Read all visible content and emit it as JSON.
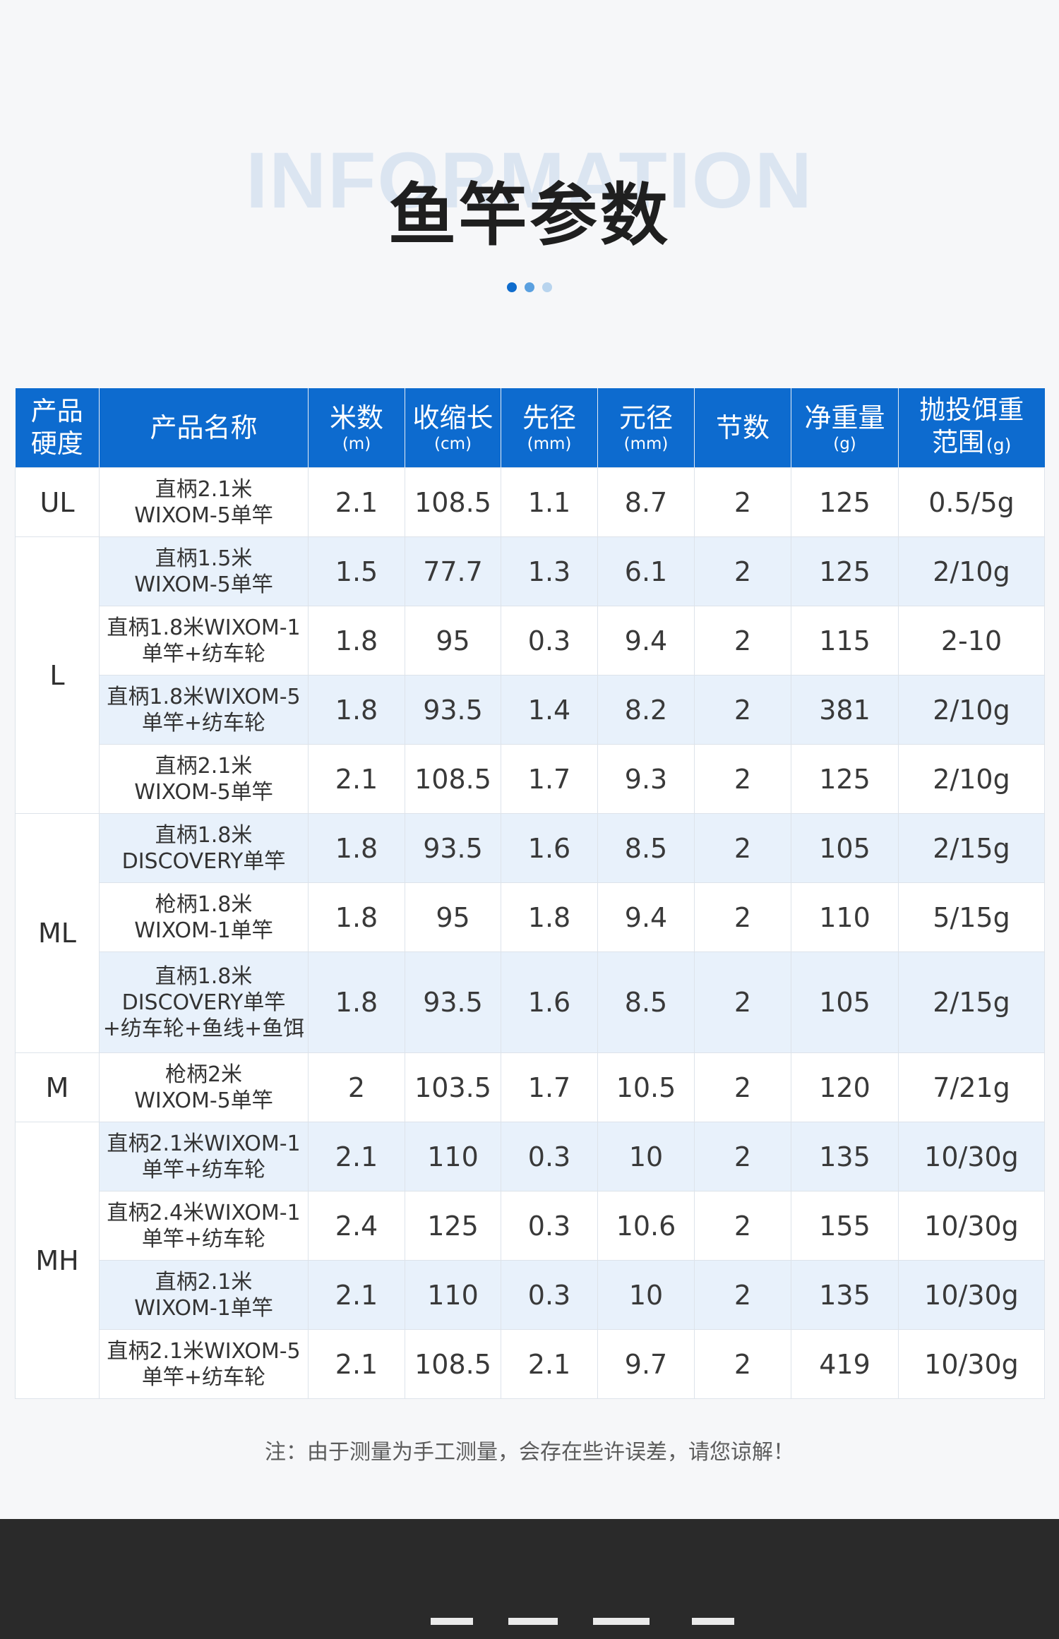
{
  "header": {
    "watermark": "INFORMATION",
    "title": "鱼竿参数"
  },
  "table": {
    "columns": [
      {
        "label": "产品硬度"
      },
      {
        "label": "产品名称"
      },
      {
        "label": "米数",
        "unit": "(m)"
      },
      {
        "label": "收缩长",
        "unit": "(cm)"
      },
      {
        "label": "先径",
        "unit": "(mm)"
      },
      {
        "label": "元径",
        "unit": "(mm)"
      },
      {
        "label": "节数"
      },
      {
        "label": "净重量",
        "unit": "(g)"
      },
      {
        "label_line1": "抛投饵重",
        "label_line2": "范围",
        "unit": "(g)"
      }
    ],
    "groups": [
      {
        "hardness": "UL",
        "rows": [
          {
            "name": "直柄2.1米\nWIXOM-5单竿",
            "length": "2.1",
            "retracted": "108.5",
            "tip": "1.1",
            "butt": "8.7",
            "sections": "2",
            "weight": "125",
            "lure": "0.5/5g"
          }
        ]
      },
      {
        "hardness": "L",
        "rows": [
          {
            "name": "直柄1.5米\nWIXOM-5单竿",
            "length": "1.5",
            "retracted": "77.7",
            "tip": "1.3",
            "butt": "6.1",
            "sections": "2",
            "weight": "125",
            "lure": "2/10g"
          },
          {
            "name": "直柄1.8米WIXOM-1\n单竿+纺车轮",
            "length": "1.8",
            "retracted": "95",
            "tip": "0.3",
            "butt": "9.4",
            "sections": "2",
            "weight": "115",
            "lure": "2-10"
          },
          {
            "name": "直柄1.8米WIXOM-5\n单竿+纺车轮",
            "length": "1.8",
            "retracted": "93.5",
            "tip": "1.4",
            "butt": "8.2",
            "sections": "2",
            "weight": "381",
            "lure": "2/10g"
          },
          {
            "name": "直柄2.1米\nWIXOM-5单竿",
            "length": "2.1",
            "retracted": "108.5",
            "tip": "1.7",
            "butt": "9.3",
            "sections": "2",
            "weight": "125",
            "lure": "2/10g"
          }
        ]
      },
      {
        "hardness": "ML",
        "rows": [
          {
            "name": "直柄1.8米\nDISCOVERY单竿",
            "length": "1.8",
            "retracted": "93.5",
            "tip": "1.6",
            "butt": "8.5",
            "sections": "2",
            "weight": "105",
            "lure": "2/15g"
          },
          {
            "name": "枪柄1.8米\nWIXOM-1单竿",
            "length": "1.8",
            "retracted": "95",
            "tip": "1.8",
            "butt": "9.4",
            "sections": "2",
            "weight": "110",
            "lure": "5/15g"
          },
          {
            "name": "直柄1.8米\nDISCOVERY单竿\n+纺车轮+鱼线+鱼饵",
            "length": "1.8",
            "retracted": "93.5",
            "tip": "1.6",
            "butt": "8.5",
            "sections": "2",
            "weight": "105",
            "lure": "2/15g",
            "tall": true
          }
        ]
      },
      {
        "hardness": "M",
        "rows": [
          {
            "name": "枪柄2米\nWIXOM-5单竿",
            "length": "2",
            "retracted": "103.5",
            "tip": "1.7",
            "butt": "10.5",
            "sections": "2",
            "weight": "120",
            "lure": "7/21g"
          }
        ]
      },
      {
        "hardness": "MH",
        "rows": [
          {
            "name": "直柄2.1米WIXOM-1\n单竿+纺车轮",
            "length": "2.1",
            "retracted": "110",
            "tip": "0.3",
            "butt": "10",
            "sections": "2",
            "weight": "135",
            "lure": "10/30g"
          },
          {
            "name": "直柄2.4米WIXOM-1\n单竿+纺车轮",
            "length": "2.4",
            "retracted": "125",
            "tip": "0.3",
            "butt": "10.6",
            "sections": "2",
            "weight": "155",
            "lure": "10/30g"
          },
          {
            "name": "直柄2.1米\nWIXOM-1单竿",
            "length": "2.1",
            "retracted": "110",
            "tip": "0.3",
            "butt": "10",
            "sections": "2",
            "weight": "135",
            "lure": "10/30g"
          },
          {
            "name": "直柄2.1米WIXOM-5\n单竿+纺车轮",
            "length": "2.1",
            "retracted": "108.5",
            "tip": "2.1",
            "butt": "9.7",
            "sections": "2",
            "weight": "419",
            "lure": "10/30g"
          }
        ]
      }
    ]
  },
  "note": "注：由于测量为手工测量，会存在些许误差，请您谅解！",
  "colors": {
    "header_blue": "#0d6bcf",
    "row_shade": "#e8f1fb",
    "watermark": "#dbe5f1",
    "footer_dark": "#2a2a2a",
    "dot_1": "#0f6ccd",
    "dot_2": "#5aa0e0",
    "dot_3": "#b8d4ee"
  }
}
